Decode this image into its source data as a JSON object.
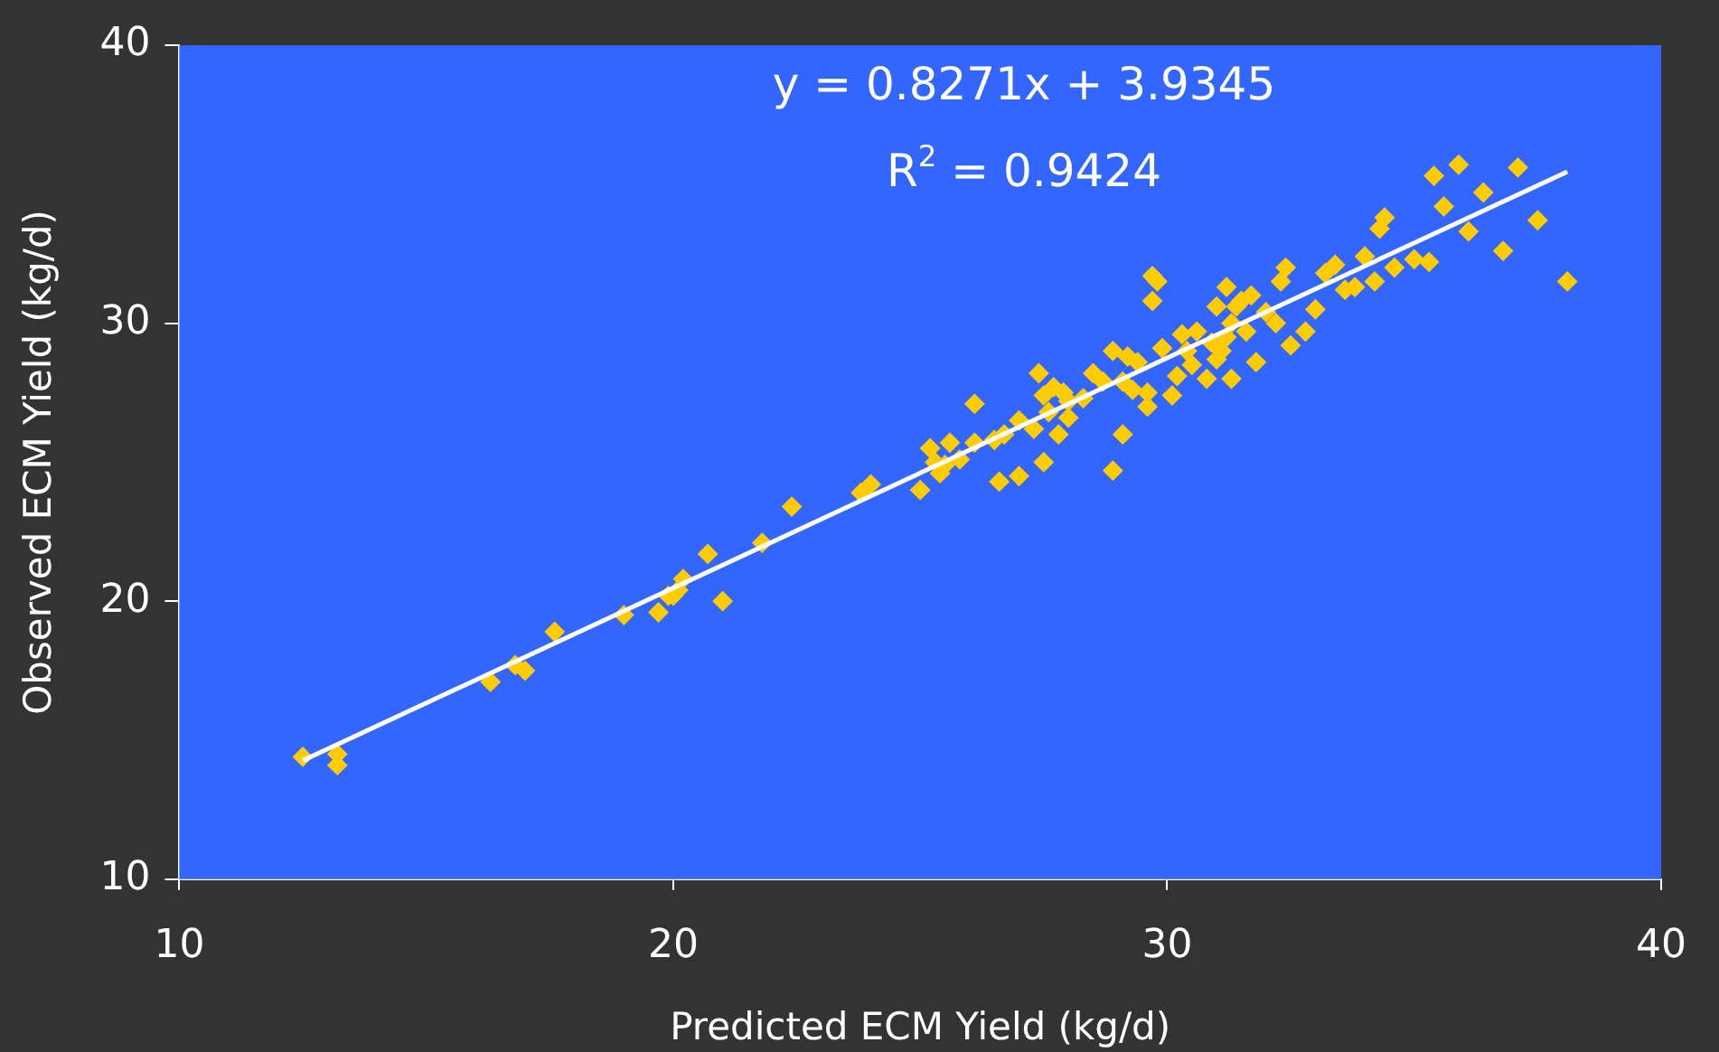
{
  "chart_data": {
    "type": "scatter",
    "xlabel": "Predicted ECM Yield (kg/d)",
    "ylabel": "Observed ECM Yield (kg/d)",
    "annotations": [
      "y = 0.8271x + 3.9345",
      "R$^{2}$ = 0.9424"
    ],
    "xlim": [
      10,
      40
    ],
    "xticks": [
      10,
      20,
      30,
      40
    ],
    "ylim": [
      10,
      40
    ],
    "yticks": [
      10,
      20,
      30,
      40
    ],
    "grid": false,
    "legend": false,
    "marker": "diamond",
    "series": [
      {
        "color": "#ffcc00",
        "x": [
          12.5,
          13.2,
          13.2,
          16.3,
          16.8,
          17.0,
          17.6,
          19.0,
          19.7,
          19.9,
          20.1,
          20.0,
          20.2,
          20.7,
          21.0,
          21.8,
          22.4,
          23.8,
          24.0,
          25.0,
          25.2,
          25.3,
          25.4,
          25.6,
          25.5,
          25.8,
          26.1,
          26.1,
          26.5,
          26.6,
          26.7,
          27.0,
          27.0,
          27.3,
          27.4,
          27.5,
          27.5,
          27.6,
          27.7,
          27.8,
          27.9,
          28.0,
          28.0,
          28.3,
          28.5,
          28.7,
          28.9,
          28.9,
          29.1,
          29.1,
          29.2,
          29.3,
          29.4,
          29.6,
          29.6,
          29.7,
          29.7,
          29.8,
          29.9,
          30.1,
          30.2,
          30.3,
          30.4,
          30.5,
          30.6,
          30.8,
          30.9,
          31.0,
          31.0,
          31.1,
          31.2,
          31.2,
          31.3,
          31.3,
          31.4,
          31.5,
          31.6,
          31.7,
          31.8,
          32.0,
          32.2,
          32.3,
          32.4,
          32.5,
          32.8,
          33.0,
          33.2,
          33.4,
          33.6,
          33.8,
          34.0,
          34.2,
          34.3,
          34.4,
          34.6,
          35.0,
          35.3,
          35.6,
          35.4,
          35.9,
          36.1,
          36.4,
          36.8,
          37.1,
          37.5,
          38.1
        ],
        "values": [
          14.4,
          14.5,
          14.1,
          17.1,
          17.7,
          17.5,
          18.9,
          19.5,
          19.6,
          20.2,
          20.4,
          20.2,
          20.8,
          21.7,
          20.0,
          22.1,
          23.4,
          23.9,
          24.2,
          24.0,
          25.5,
          25.0,
          24.6,
          25.7,
          24.9,
          25.1,
          25.7,
          27.1,
          25.8,
          24.3,
          26.0,
          24.5,
          26.5,
          26.2,
          28.2,
          25.0,
          27.4,
          26.8,
          27.7,
          26.0,
          27.5,
          26.6,
          27.2,
          27.3,
          28.2,
          27.9,
          24.7,
          29.0,
          26.0,
          27.9,
          28.8,
          27.6,
          28.6,
          27.0,
          27.5,
          30.8,
          31.7,
          31.5,
          29.1,
          27.4,
          28.1,
          29.6,
          29.0,
          28.5,
          29.7,
          28.0,
          29.3,
          30.6,
          28.7,
          29.0,
          29.5,
          31.3,
          28.0,
          30.0,
          30.6,
          30.8,
          29.7,
          31.0,
          28.6,
          30.4,
          30.0,
          31.5,
          32.0,
          29.2,
          29.7,
          30.5,
          31.8,
          32.1,
          31.2,
          31.3,
          32.4,
          31.5,
          33.4,
          33.8,
          32.0,
          32.3,
          32.2,
          34.2,
          35.3,
          35.7,
          33.3,
          34.7,
          32.6,
          35.6,
          33.7,
          31.5
        ]
      },
      {
        "type": "line",
        "color": "#ffffff",
        "x": [
          12.5,
          38.1
        ],
        "values": [
          14.27,
          35.45
        ],
        "marker": "none"
      }
    ]
  }
}
